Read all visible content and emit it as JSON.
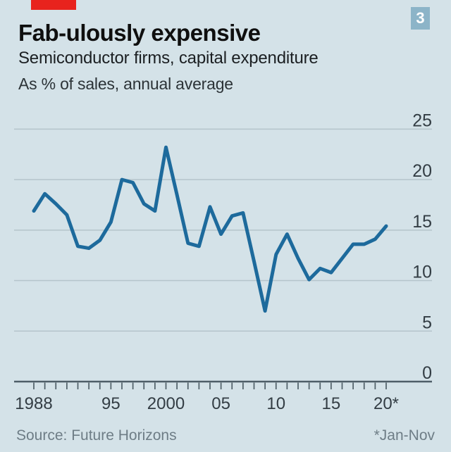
{
  "header": {
    "title": "Fab-ulously expensive",
    "subtitle": "Semiconductor firms, capital expenditure",
    "unit_note": "As % of sales, annual average",
    "chart_number": "3"
  },
  "footer": {
    "source": "Source: Future Horizons",
    "footnote": "*Jan-Nov"
  },
  "colors": {
    "background": "#d4e2e8",
    "brand_red": "#e8231d",
    "badge_blue": "#8cb4c8",
    "badge_text": "#ffffff",
    "line": "#1d6a9c",
    "grid": "#b5c4cb",
    "axis": "#4e5e67",
    "axis_text": "#333d44"
  },
  "chart_data": {
    "type": "line",
    "title": "Fab-ulously expensive",
    "subtitle": "Semiconductor firms, capital expenditure",
    "ylabel": "As % of sales, annual average",
    "xlabel": "",
    "series_name": "Semiconductor capital expenditure, % of sales",
    "x": [
      1988,
      1989,
      1990,
      1991,
      1992,
      1993,
      1994,
      1995,
      1996,
      1997,
      1998,
      1999,
      2000,
      2001,
      2002,
      2003,
      2004,
      2005,
      2006,
      2007,
      2008,
      2009,
      2010,
      2011,
      2012,
      2013,
      2014,
      2015,
      2016,
      2017,
      2018,
      2019,
      2020
    ],
    "values": [
      16.9,
      18.6,
      17.6,
      16.5,
      13.4,
      13.2,
      14.0,
      15.8,
      20.0,
      19.7,
      17.6,
      16.9,
      23.2,
      18.5,
      13.7,
      13.4,
      17.3,
      14.6,
      16.4,
      16.7,
      11.9,
      7.0,
      12.6,
      14.6,
      12.2,
      10.1,
      11.2,
      10.8,
      12.2,
      13.6,
      13.6,
      14.1,
      15.4
    ],
    "yticks": [
      0,
      5,
      10,
      15,
      20,
      25
    ],
    "ylim": [
      0,
      25
    ],
    "xlim": [
      1988,
      2020
    ],
    "xtick_labels": [
      {
        "year": 1988,
        "label": "1988"
      },
      {
        "year": 1995,
        "label": "95"
      },
      {
        "year": 2000,
        "label": "2000"
      },
      {
        "year": 2005,
        "label": "05"
      },
      {
        "year": 2010,
        "label": "10"
      },
      {
        "year": 2015,
        "label": "15"
      },
      {
        "year": 2020,
        "label": "20*"
      }
    ],
    "grid": "horizontal",
    "y_axis_side": "right",
    "legend": "none"
  }
}
